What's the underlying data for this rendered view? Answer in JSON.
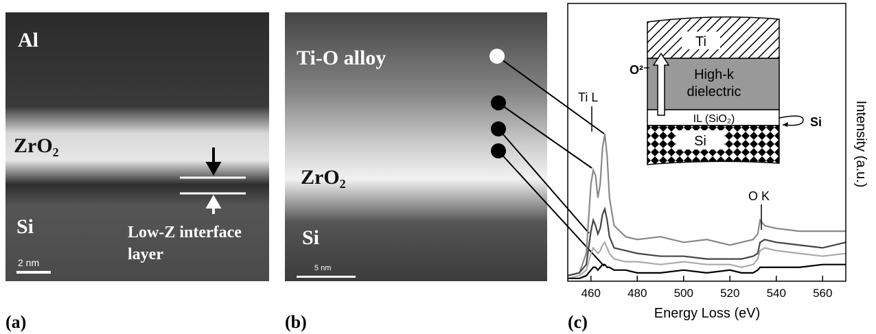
{
  "panel_a": {
    "label": "(a)",
    "layers": [
      "Al",
      "ZrO₂",
      "Si"
    ],
    "annotation": [
      "Low-Z interface",
      "layer"
    ],
    "scale_bar": "2 nm"
  },
  "panel_b": {
    "label": "(b)",
    "layers": [
      "Ti-O alloy",
      "ZrO₂",
      "Si"
    ],
    "scale_bar": "5 nm"
  },
  "chart_data": {
    "type": "line",
    "label": "(c)",
    "x_label": "Energy Loss (eV)",
    "y_label": "Intensity (a.u.)",
    "annotations": [
      "Ti L",
      "O K"
    ],
    "inset": {
      "layers": [
        "Ti",
        "High-k",
        "dielectric",
        "IL (SiO₂)",
        "Si"
      ],
      "arrow_label": "O²⁻",
      "side_label": "Si"
    },
    "x": [
      450,
      455,
      458,
      460,
      461,
      462,
      463,
      464,
      465,
      466,
      467,
      468,
      470,
      475,
      480,
      490,
      500,
      510,
      520,
      525,
      530,
      532,
      533,
      535,
      540,
      550,
      560,
      570
    ],
    "series": [
      {
        "color": "#888888",
        "values": [
          2,
          3,
          10,
          35,
          40,
          38,
          30,
          35,
          48,
          53,
          45,
          30,
          20,
          16,
          15,
          16,
          14,
          15,
          13,
          14,
          15,
          17,
          22,
          20,
          19,
          18,
          18,
          18
        ]
      },
      {
        "color": "#444444",
        "values": [
          2,
          3,
          6,
          18,
          22,
          20,
          17,
          19,
          24,
          26,
          22,
          16,
          12,
          11,
          10,
          9,
          9,
          8,
          8,
          8,
          9,
          10,
          14,
          15,
          14,
          13,
          12,
          14
        ]
      },
      {
        "color": "#aaaaaa",
        "values": [
          1,
          2,
          4,
          10,
          12,
          11,
          10,
          11,
          13,
          14,
          12,
          10,
          8,
          7,
          7,
          6,
          7,
          6,
          6,
          5,
          6,
          8,
          11,
          12,
          11,
          10,
          9,
          10
        ]
      },
      {
        "color": "#000000",
        "values": [
          1,
          1,
          2,
          4,
          5,
          5,
          4,
          5,
          6,
          6,
          5,
          5,
          4,
          4,
          3,
          3,
          4,
          3,
          4,
          3,
          3,
          4,
          5,
          5,
          5,
          5,
          6,
          6
        ]
      }
    ],
    "xlim": [
      450,
      570
    ],
    "xticks": [
      460,
      480,
      500,
      520,
      540,
      560
    ],
    "ylim": [
      0,
      100
    ]
  }
}
